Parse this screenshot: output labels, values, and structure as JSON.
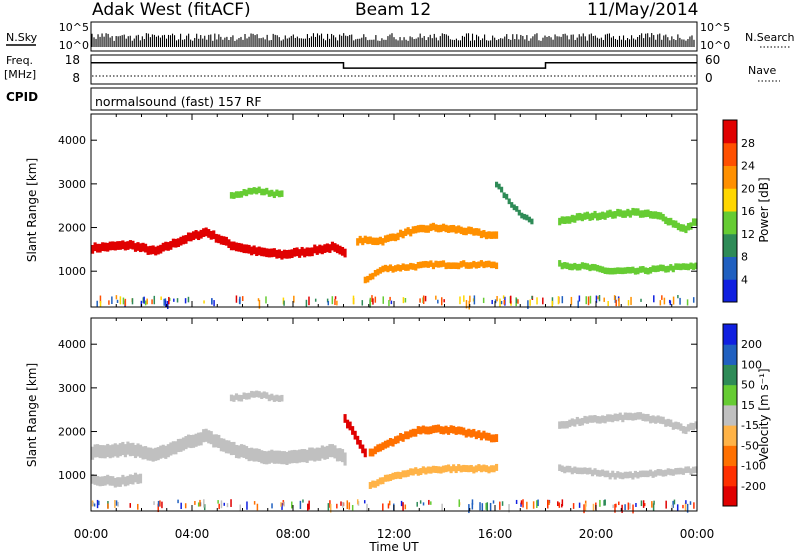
{
  "header": {
    "station": "Adak West (fitACF)",
    "beam": "Beam 12",
    "date": "11/May/2014"
  },
  "panels": {
    "nsky_label": "N.Sky",
    "nsearch_label": "N.Search",
    "noise_ticks": [
      "10^5",
      "10^0"
    ],
    "freq_label": "Freq.",
    "freq_unit": "[MHz]",
    "freq_ticks": [
      "18",
      "8"
    ],
    "nave_label": "Nave",
    "nave_ticks": [
      "60",
      "0"
    ],
    "cpid_label": "CPID",
    "cpid_text": "normalsound (fast) 157 RF"
  },
  "colors": {
    "frame": "#000000",
    "background": "#ffffff",
    "ground_scatter": "#c0c0c0"
  },
  "chart_data": [
    {
      "type": "heatmap",
      "name": "power",
      "ylabel": "Slant Range [km]",
      "xlabel": "",
      "y_ticks": [
        "1000",
        "2000",
        "3000",
        "4000"
      ],
      "ylim": [
        180,
        4600
      ],
      "xlim": [
        0,
        24
      ],
      "colorbar": {
        "label": "Power [dB]",
        "ticks": [
          "4",
          "8",
          "12",
          "16",
          "20",
          "24",
          "28"
        ],
        "range": [
          0,
          32
        ],
        "colors": [
          "#1020e0",
          "#2060c0",
          "#2e8b57",
          "#66cc33",
          "#ffd700",
          "#ff9000",
          "#ff5000",
          "#e00000"
        ]
      },
      "bands": [
        {
          "t": [
            0.0,
            1.5,
            2.5,
            3.5,
            4.5,
            5.5,
            6.5,
            7.5,
            8.5,
            9.5,
            10.0
          ],
          "r": [
            1530,
            1600,
            1450,
            1700,
            1900,
            1600,
            1450,
            1380,
            1450,
            1550,
            1400
          ],
          "w": 200,
          "level": 28
        },
        {
          "t": [
            5.5,
            6.5,
            7.5
          ],
          "r": [
            2750,
            2850,
            2750
          ],
          "w": 150,
          "level": 12
        },
        {
          "t": [
            10.5,
            11.5,
            12.5,
            13.5,
            14.5,
            15.5,
            16.0
          ],
          "r": [
            1700,
            1700,
            1900,
            2000,
            1950,
            1850,
            1800
          ],
          "w": 170,
          "level": 20
        },
        {
          "t": [
            10.8,
            11.5,
            12.5,
            13.5,
            14.5,
            15.5,
            16.0
          ],
          "r": [
            800,
            1050,
            1100,
            1150,
            1150,
            1150,
            1150
          ],
          "w": 150,
          "level": 20
        },
        {
          "t": [
            16.0,
            16.5,
            17.0,
            17.5
          ],
          "r": [
            3000,
            2600,
            2300,
            2100
          ],
          "w": 130,
          "level": 8
        },
        {
          "t": [
            18.5,
            19.5,
            20.5,
            21.5,
            22.5,
            23.5,
            24.0
          ],
          "r": [
            1150,
            1100,
            1000,
            1000,
            1050,
            1100,
            1100
          ],
          "w": 150,
          "level": 12
        },
        {
          "t": [
            18.5,
            19.5,
            20.5,
            21.5,
            22.5,
            23.5,
            24.0
          ],
          "r": [
            2150,
            2250,
            2300,
            2350,
            2250,
            1950,
            2200
          ],
          "w": 170,
          "level": 12
        }
      ]
    },
    {
      "type": "heatmap",
      "name": "velocity",
      "ylabel": "Slant Range [km]",
      "xlabel": "Time UT",
      "y_ticks": [
        "1000",
        "2000",
        "3000",
        "4000"
      ],
      "x_ticks": [
        "00:00",
        "04:00",
        "08:00",
        "12:00",
        "16:00",
        "20:00",
        "00:00"
      ],
      "ylim": [
        180,
        4600
      ],
      "xlim": [
        0,
        24
      ],
      "colorbar": {
        "label": "Velocity [m s⁻¹]",
        "ticks": [
          "-200",
          "-100",
          "-50",
          "-15",
          "15",
          "50",
          "100",
          "200"
        ],
        "range": [
          -250,
          250
        ],
        "colors": [
          "#e00000",
          "#ff3000",
          "#ff7000",
          "#ffb347",
          "#c0c0c0",
          "#66cc33",
          "#2e8b57",
          "#2060c0",
          "#1020e0"
        ]
      },
      "bands": [
        {
          "t": [
            0.0,
            1.5,
            2.5,
            3.5,
            4.5,
            5.5,
            6.5,
            7.5,
            8.5,
            9.5,
            10.0
          ],
          "r": [
            1530,
            1600,
            1450,
            1700,
            1900,
            1600,
            1450,
            1380,
            1450,
            1550,
            1400
          ],
          "w": 300,
          "level": 0
        },
        {
          "t": [
            0.0,
            1.0,
            2.0
          ],
          "r": [
            900,
            850,
            950
          ],
          "w": 220,
          "level": 0
        },
        {
          "t": [
            5.5,
            6.5,
            7.5
          ],
          "r": [
            2750,
            2850,
            2750
          ],
          "w": 150,
          "level": -20
        },
        {
          "t": [
            10.0,
            10.4,
            10.8
          ],
          "r": [
            2300,
            1900,
            1500
          ],
          "w": 200,
          "level": -220
        },
        {
          "t": [
            11.0,
            12.0,
            13.0,
            14.0,
            15.0,
            16.0
          ],
          "r": [
            1500,
            1800,
            2050,
            2050,
            1950,
            1850
          ],
          "w": 180,
          "level": -120
        },
        {
          "t": [
            11.0,
            12.0,
            13.0,
            14.0,
            15.0,
            16.0
          ],
          "r": [
            750,
            1000,
            1100,
            1150,
            1150,
            1150
          ],
          "w": 160,
          "level": -80
        },
        {
          "t": [
            18.5,
            19.5,
            20.5,
            21.5,
            22.5,
            23.5,
            24.0
          ],
          "r": [
            2150,
            2250,
            2300,
            2350,
            2250,
            2050,
            2200
          ],
          "w": 170,
          "level": 0
        },
        {
          "t": [
            18.5,
            19.5,
            20.5,
            21.5,
            22.5,
            23.5,
            24.0
          ],
          "r": [
            1150,
            1100,
            1000,
            1000,
            1050,
            1100,
            1100
          ],
          "w": 150,
          "level": -20
        }
      ]
    }
  ],
  "freq_series": {
    "t": [
      0,
      10,
      10,
      18,
      18,
      24
    ],
    "v": [
      16.5,
      16.5,
      13.5,
      13.5,
      16.5,
      16.5
    ],
    "breaks": [
      10,
      18
    ]
  }
}
